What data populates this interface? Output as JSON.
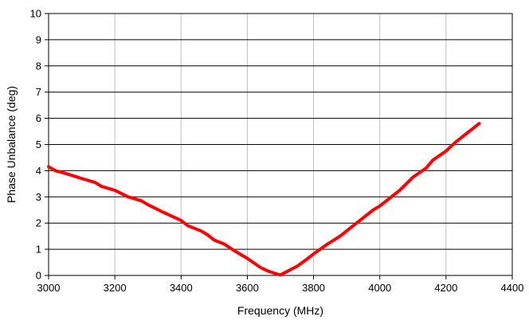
{
  "chart_data": {
    "type": "line",
    "title": "",
    "xlabel": "Frequency (MHz)",
    "ylabel": "Phase Unbalance (deg)",
    "xlim": [
      3000,
      4400
    ],
    "ylim": [
      0,
      10
    ],
    "xticks": [
      3000,
      3200,
      3400,
      3600,
      3800,
      4000,
      4200,
      4400
    ],
    "yticks": [
      0,
      1,
      2,
      3,
      4,
      5,
      6,
      7,
      8,
      9,
      10
    ],
    "grid": true,
    "legend": "none",
    "series": [
      {
        "color": "#ff0000",
        "x": [
          3000,
          3020,
          3050,
          3100,
          3140,
          3160,
          3200,
          3240,
          3280,
          3300,
          3340,
          3400,
          3420,
          3460,
          3480,
          3500,
          3530,
          3560,
          3600,
          3640,
          3660,
          3690,
          3700,
          3720,
          3750,
          3780,
          3800,
          3840,
          3880,
          3920,
          3950,
          3980,
          4000,
          4030,
          4060,
          4100,
          4140,
          4160,
          4200,
          4230,
          4260,
          4280,
          4300
        ],
        "y": [
          4.15,
          4.0,
          3.9,
          3.7,
          3.55,
          3.4,
          3.25,
          3.0,
          2.85,
          2.7,
          2.45,
          2.1,
          1.9,
          1.7,
          1.55,
          1.35,
          1.2,
          0.95,
          0.65,
          0.3,
          0.18,
          0.05,
          0.02,
          0.15,
          0.35,
          0.62,
          0.82,
          1.18,
          1.5,
          1.9,
          2.2,
          2.5,
          2.65,
          2.95,
          3.25,
          3.75,
          4.1,
          4.4,
          4.75,
          5.1,
          5.4,
          5.6,
          5.8
        ]
      }
    ]
  }
}
